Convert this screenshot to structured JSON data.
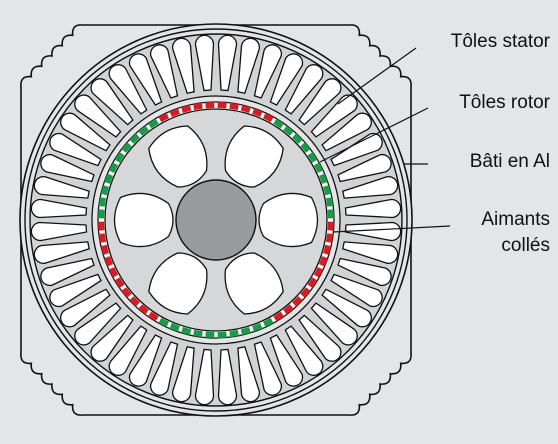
{
  "labels": {
    "stator_sheets": "Tôles stator",
    "rotor_sheets": "Tôles rotor",
    "frame": "Bâti en Al",
    "magnets_line1": "Aimants",
    "magnets_line2": "collés"
  },
  "colors": {
    "background": "#e4e5e6",
    "stator_fill": "#d2d3d5",
    "slot_fill": "#ffffff",
    "rotor_fill": "#d6d7d9",
    "shaft_fill": "#9a9b9d",
    "magnet_red": "#d21f26",
    "magnet_green": "#1b9a4a",
    "outline": "#111111"
  },
  "stator_slot_count": 48,
  "rotor_pole_count": 6
}
